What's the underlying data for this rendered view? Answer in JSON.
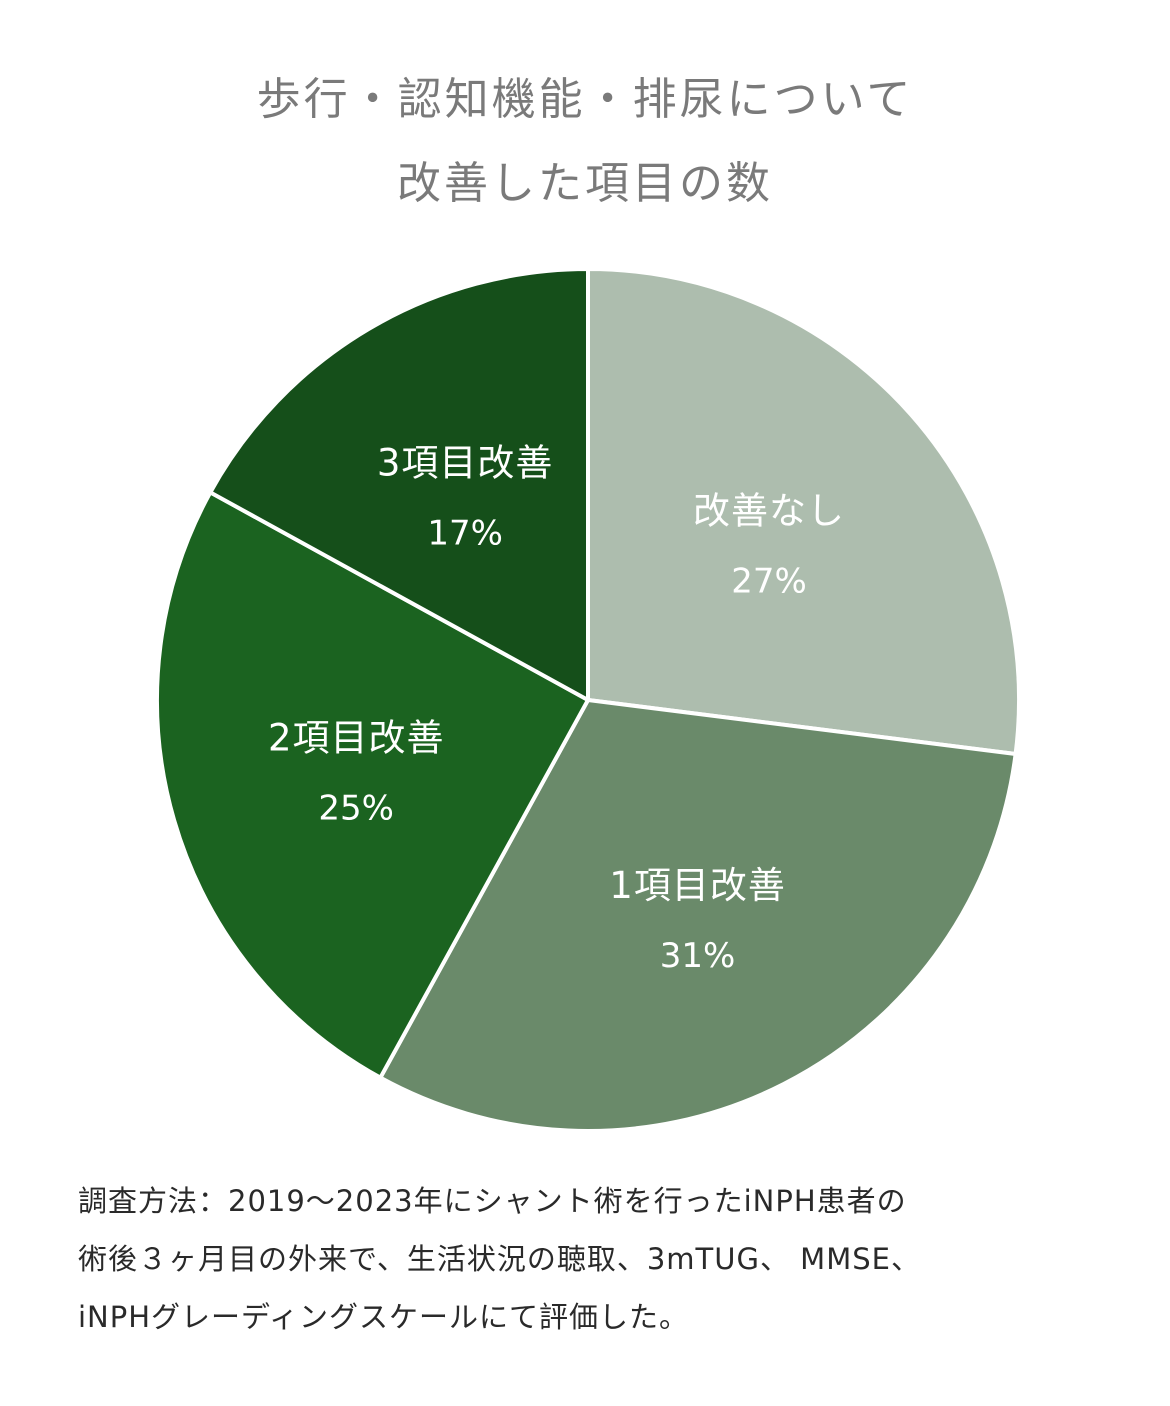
{
  "chart_data": {
    "type": "pie",
    "title_lines": [
      "歩行・認知機能・排尿について",
      "改善した項目の数"
    ],
    "slices": [
      {
        "name": "改善なし",
        "value": 27,
        "label": "27%",
        "color": "#adbdae"
      },
      {
        "name": "1項目改善",
        "value": 31,
        "label": "31%",
        "color": "#6a8a6a"
      },
      {
        "name": "2項目改善",
        "value": 25,
        "label": "25%",
        "color": "#1b6320"
      },
      {
        "name": "3項目改善",
        "value": 17,
        "label": "17%",
        "color": "#154f1a"
      }
    ],
    "start": "12 o'clock",
    "direction": "clockwise",
    "legend": "none"
  },
  "footnote": {
    "lines": [
      "調査方法：2019〜2023年にシャント術を行ったiNPH患者の",
      "術後３ヶ月目の外来で、生活状況の聴取、3mTUG、 MMSE、",
      "iNPHグレーディングスケールにて評価した。"
    ]
  },
  "colors": {
    "title": "#7a7a7a",
    "label_text": "#ffffff",
    "footnote_text": "#2a2a2a",
    "slice_border": "#ffffff"
  }
}
